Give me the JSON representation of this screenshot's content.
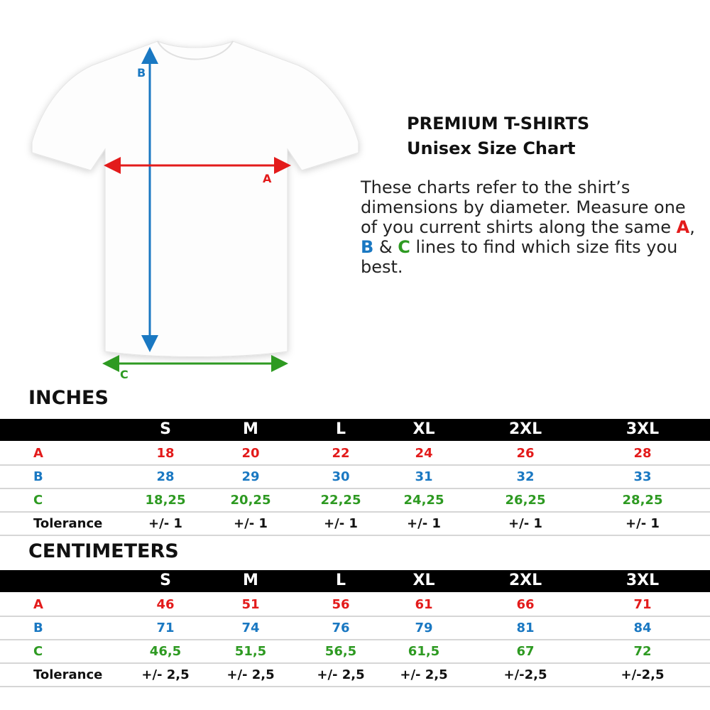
{
  "header": {
    "title": "PREMIUM T-SHIRTS",
    "subtitle": "Unisex Size Chart"
  },
  "description": {
    "part1": "These charts refer to the shirt’s dimensions by diameter. Measure one of you current shirts along the same ",
    "a": "A",
    "sep1": ", ",
    "b": "B",
    "sep2": " & ",
    "c": "C",
    "part2": " lines to find which size fits you best."
  },
  "diagram": {
    "label_a": "A",
    "label_b": "B",
    "label_c": "C"
  },
  "colors": {
    "a": "#e31b1b",
    "b": "#1a78c2",
    "c": "#2e9a22"
  },
  "sizes": [
    "S",
    "M",
    "L",
    "XL",
    "2XL",
    "3XL"
  ],
  "inches": {
    "title": "INCHES",
    "rows": [
      {
        "label": "A",
        "values": [
          "18",
          "20",
          "22",
          "24",
          "26",
          "28"
        ]
      },
      {
        "label": "B",
        "values": [
          "28",
          "29",
          "30",
          "31",
          "32",
          "33"
        ]
      },
      {
        "label": "C",
        "values": [
          "18,25",
          "20,25",
          "22,25",
          "24,25",
          "26,25",
          "28,25"
        ]
      },
      {
        "label": "Tolerance",
        "values": [
          "+/- 1",
          "+/- 1",
          "+/- 1",
          "+/- 1",
          "+/- 1",
          "+/- 1"
        ]
      }
    ]
  },
  "centimeters": {
    "title": "CENTIMETERS",
    "rows": [
      {
        "label": "A",
        "values": [
          "46",
          "51",
          "56",
          "61",
          "66",
          "71"
        ]
      },
      {
        "label": "B",
        "values": [
          "71",
          "74",
          "76",
          "79",
          "81",
          "84"
        ]
      },
      {
        "label": "C",
        "values": [
          "46,5",
          "51,5",
          "56,5",
          "61,5",
          "67",
          "72"
        ]
      },
      {
        "label": "Tolerance",
        "values": [
          "+/- 2,5",
          "+/- 2,5",
          "+/- 2,5",
          "+/- 2,5",
          "+/-2,5",
          "+/-2,5"
        ]
      }
    ]
  }
}
